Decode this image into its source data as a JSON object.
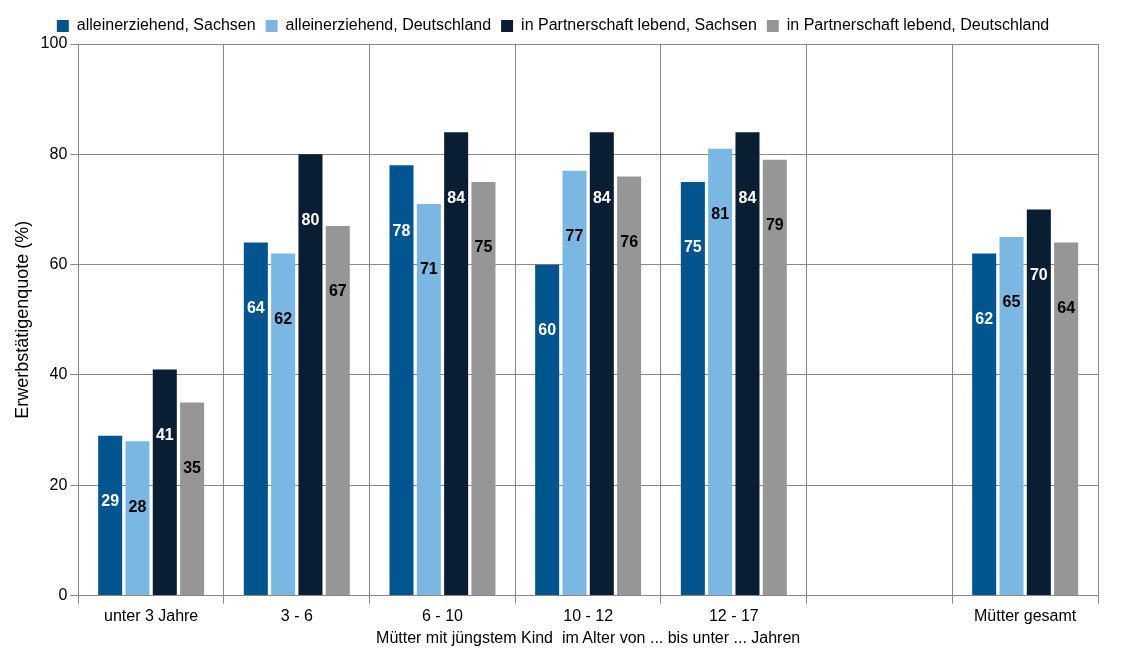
{
  "chart_data": {
    "type": "bar",
    "ylabel": "Erwerbstätigenquote (%)",
    "xlabel": "Mütter mit jüngstem Kind  im Alter von ... bis unter ... Jahren",
    "categories": [
      "unter 3 Jahre",
      "3 - 6",
      "6 - 10",
      "10 - 12",
      "12 - 17",
      null,
      "Mütter gesamt"
    ],
    "series": [
      {
        "name": "alleinerziehend, Sachsen",
        "color": "#00558f",
        "values": [
          29,
          64,
          78,
          60,
          75,
          null,
          62
        ]
      },
      {
        "name": "alleinerziehend, Deutschland",
        "color": "#7ab8e3",
        "values": [
          28,
          62,
          71,
          77,
          81,
          null,
          65
        ]
      },
      {
        "name": "in Partnerschaft lebend, Sachsen",
        "color": "#0a1e33",
        "values": [
          41,
          80,
          84,
          84,
          84,
          null,
          70
        ]
      },
      {
        "name": "in Partnerschaft lebend, Deutschland",
        "color": "#969696",
        "values": [
          35,
          67,
          75,
          76,
          79,
          null,
          64
        ]
      }
    ],
    "ylim": [
      0,
      100
    ],
    "yticks": [
      0,
      20,
      40,
      60,
      80,
      100
    ],
    "grid": true,
    "legend": "top",
    "data_labels": true
  }
}
